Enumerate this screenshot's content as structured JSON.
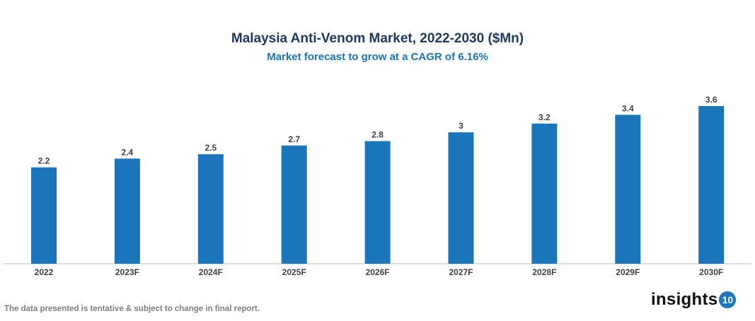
{
  "chart_data": {
    "type": "bar",
    "title": "Malaysia Anti-Venom Market, 2022-2030 ($Mn)",
    "subtitle": "Market forecast to grow at a CAGR of 6.16%",
    "categories": [
      "2022",
      "2023F",
      "2024F",
      "2025F",
      "2026F",
      "2027F",
      "2028F",
      "2029F",
      "2030F"
    ],
    "values": [
      2.2,
      2.4,
      2.5,
      2.7,
      2.8,
      3,
      3.2,
      3.4,
      3.6
    ],
    "data_labels": [
      "2.2",
      "2.4",
      "2.5",
      "2.7",
      "2.8",
      "3",
      "3.2",
      "3.4",
      "3.6"
    ],
    "xlabel": "",
    "ylabel": "",
    "ylim": [
      0,
      3.6
    ],
    "grid": false,
    "legend": "none",
    "bar_color": "#1a75bb"
  },
  "footer": {
    "note": "The data presented is tentative & subject to change in final report."
  },
  "logo": {
    "text": "insights",
    "badge": "10"
  }
}
